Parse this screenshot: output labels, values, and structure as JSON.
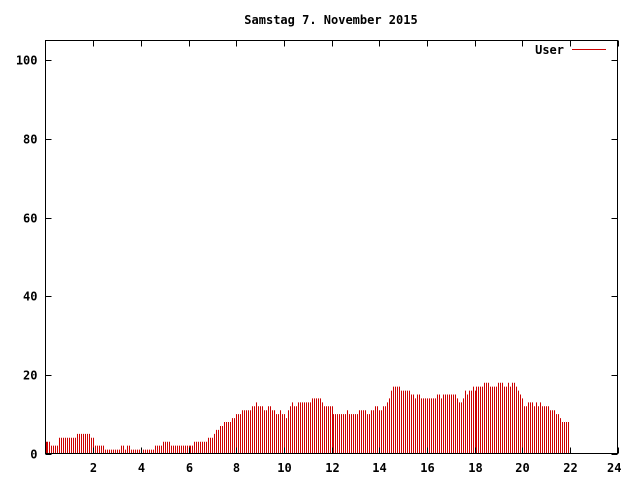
{
  "chart_data": {
    "type": "bar",
    "title": "Samstag 7. November 2015",
    "xlabel": "",
    "ylabel": "",
    "xlim": [
      0,
      24
    ],
    "ylim": [
      0,
      105
    ],
    "x_ticks": [
      "2",
      "4",
      "6",
      "8",
      "10",
      "12",
      "14",
      "16",
      "18",
      "20",
      "22",
      "24"
    ],
    "y_ticks": [
      "0",
      "20",
      "40",
      "60",
      "80",
      "100"
    ],
    "grid": false,
    "legend_position": "top-right",
    "interval_minutes": 5,
    "series": [
      {
        "name": "User",
        "color": "#cc0000",
        "values": [
          3,
          3,
          3,
          2,
          2,
          2,
          2,
          4,
          4,
          4,
          4,
          4,
          4,
          4,
          4,
          4,
          5,
          5,
          5,
          5,
          5,
          5,
          5,
          4,
          4,
          2,
          2,
          2,
          2,
          2,
          1,
          1,
          1,
          1,
          1,
          1,
          1,
          1,
          2,
          2,
          1,
          2,
          2,
          1,
          1,
          1,
          1,
          1,
          1,
          1,
          1,
          1,
          1,
          1,
          1,
          2,
          2,
          2,
          2,
          3,
          3,
          3,
          3,
          2,
          2,
          2,
          2,
          2,
          2,
          2,
          2,
          2,
          2,
          2,
          2,
          3,
          3,
          3,
          3,
          3,
          3,
          3,
          4,
          4,
          4,
          5,
          6,
          6,
          7,
          7,
          8,
          8,
          8,
          8,
          9,
          9,
          10,
          10,
          10,
          11,
          11,
          11,
          11,
          11,
          12,
          12,
          13,
          12,
          12,
          12,
          11,
          11,
          12,
          12,
          11,
          11,
          10,
          10,
          11,
          10,
          10,
          9,
          11,
          12,
          13,
          12,
          12,
          13,
          13,
          13,
          13,
          13,
          13,
          13,
          14,
          14,
          14,
          14,
          14,
          13,
          12,
          12,
          12,
          12,
          12,
          10,
          10,
          10,
          10,
          10,
          10,
          10,
          11,
          10,
          10,
          10,
          10,
          10,
          11,
          11,
          11,
          11,
          10,
          10,
          11,
          11,
          12,
          12,
          11,
          11,
          12,
          12,
          13,
          14,
          16,
          17,
          17,
          17,
          17,
          16,
          16,
          16,
          16,
          16,
          15,
          15,
          14,
          15,
          15,
          14,
          14,
          14,
          14,
          14,
          14,
          14,
          14,
          15,
          15,
          14,
          15,
          15,
          15,
          15,
          15,
          15,
          15,
          14,
          13,
          13,
          14,
          16,
          15,
          16,
          16,
          17,
          16,
          17,
          17,
          17,
          17,
          18,
          18,
          18,
          17,
          17,
          17,
          17,
          18,
          18,
          18,
          17,
          17,
          18,
          17,
          18,
          18,
          17,
          16,
          15,
          14,
          12,
          12,
          13,
          13,
          13,
          12,
          13,
          12,
          13,
          12,
          12,
          12,
          12,
          11,
          11,
          11,
          10,
          10,
          9,
          8,
          8,
          8,
          8
        ]
      }
    ]
  }
}
